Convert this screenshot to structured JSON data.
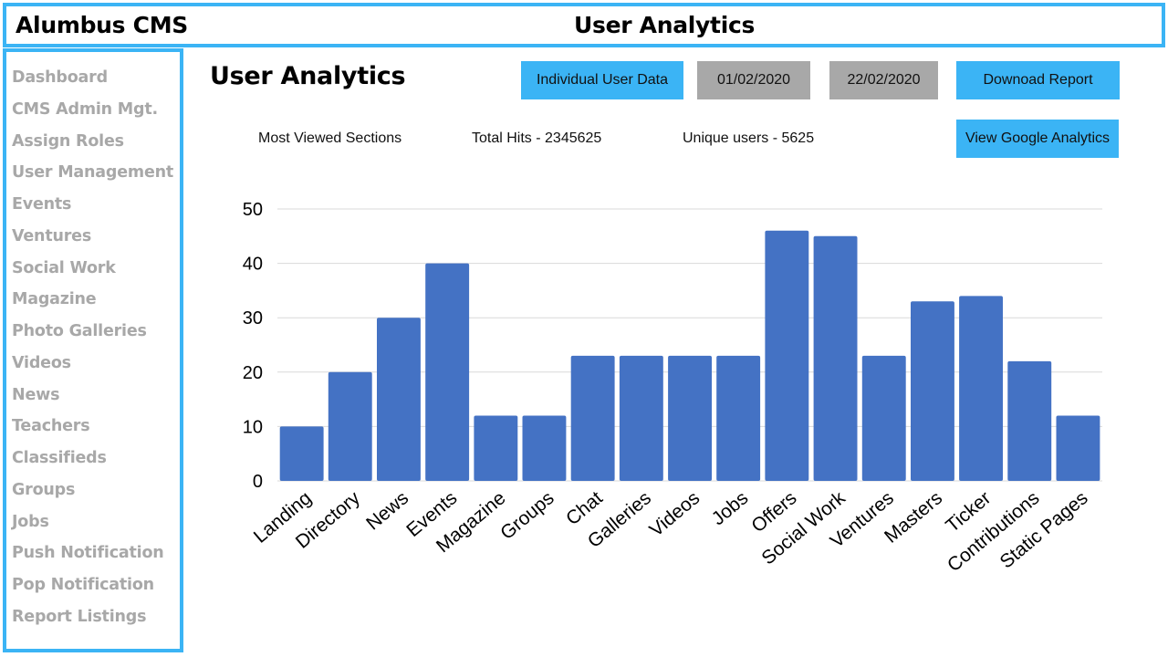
{
  "header": {
    "brand": "Alumbus CMS",
    "title": "User Analytics"
  },
  "sidebar": {
    "items": [
      {
        "label": "Dashboard"
      },
      {
        "label": "CMS Admin Mgt."
      },
      {
        "label": "Assign Roles"
      },
      {
        "label": "User Management"
      },
      {
        "label": "Events"
      },
      {
        "label": "Ventures"
      },
      {
        "label": "Social Work"
      },
      {
        "label": "Magazine"
      },
      {
        "label": "Photo Galleries"
      },
      {
        "label": "Videos"
      },
      {
        "label": "News"
      },
      {
        "label": "Teachers"
      },
      {
        "label": "Classifieds"
      },
      {
        "label": "Groups"
      },
      {
        "label": "Jobs"
      },
      {
        "label": "Push Notification"
      },
      {
        "label": "Pop Notification"
      },
      {
        "label": "Report Listings"
      }
    ]
  },
  "main": {
    "title": "User Analytics",
    "individual_user_data_label": "Individual User Data",
    "date_from": "01/02/2020",
    "date_to": "22/02/2020",
    "download_label": "Downoad Report",
    "google_analytics_label": "View Google Analytics",
    "stats": {
      "most_viewed": "Most Viewed Sections",
      "total_hits": "Total Hits - 2345625",
      "unique_users": "Unique users - 5625"
    }
  },
  "colors": {
    "accent": "#3bb4f5",
    "bar": "#4472c4",
    "date_bg": "#a8a8a8",
    "sidebar_text": "#a8a8a8"
  },
  "chart_data": {
    "type": "bar",
    "categories": [
      "Landing",
      "Directory",
      "News",
      "Events",
      "Magazine",
      "Groups",
      "Chat",
      "Galleries",
      "Videos",
      "Jobs",
      "Offers",
      "Social Work",
      "Ventures",
      "Masters",
      "Ticker",
      "Contributions",
      "Static Pages"
    ],
    "values": [
      10,
      20,
      30,
      40,
      12,
      12,
      23,
      23,
      23,
      23,
      46,
      45,
      23,
      33,
      34,
      22,
      12
    ],
    "ylim": [
      0,
      50
    ],
    "yticks": [
      0,
      10,
      20,
      30,
      40,
      50
    ],
    "grid": true,
    "legend": "none"
  }
}
